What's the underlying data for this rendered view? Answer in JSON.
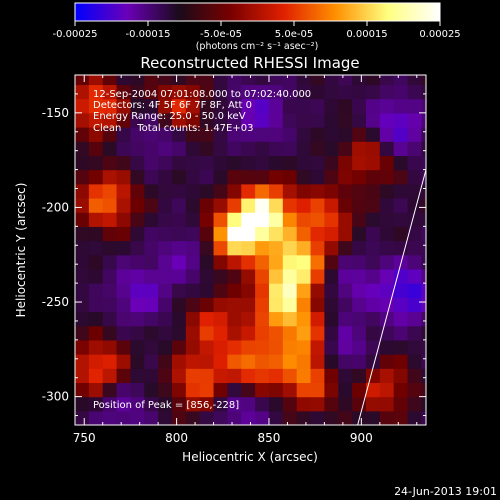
{
  "chart_data": {
    "type": "heatmap",
    "title": "Reconstructed RHESSI Image",
    "xlabel": "Heliocentric X (arcsec)",
    "ylabel": "Heliocentric Y (arcsec)",
    "xlim": [
      745,
      935
    ],
    "ylim": [
      -315,
      -130
    ],
    "x_ticks": [
      750,
      800,
      850,
      900
    ],
    "x_tick_labels": [
      "750",
      "800",
      "850",
      "900"
    ],
    "y_ticks": [
      -150,
      -200,
      -250,
      -300
    ],
    "y_tick_labels": [
      "-150",
      "-200",
      "-250",
      "-300"
    ],
    "colorbar": {
      "range": [
        -0.00025,
        0.00025
      ],
      "ticks": [
        -0.00025,
        -0.00015,
        -5e-05,
        5e-05,
        0.00015,
        0.00025
      ],
      "tick_labels": [
        "-0.00025",
        "-0.00015",
        "-5.0e-05",
        "5.0e-05",
        "0.00015",
        "0.00025"
      ],
      "unit_label": "(photons cm⁻² s⁻¹ asec⁻²)",
      "colormap": [
        "#0000ff",
        "#6a00b8",
        "#1a0a1a",
        "#7a0000",
        "#e02000",
        "#ff9000",
        "#ffff80",
        "#ffffff"
      ]
    },
    "annotations": [
      "12-Sep-2004 07:01:08.000 to 07:02:40.000",
      "Detectors: 4F 5F 6F 7F 8F, Att 0",
      "Energy Range: 25.0 - 50.0 keV",
      "Clean     Total counts: 1.47E+03",
      "Position of Peak = [856,-228]"
    ],
    "peak": [
      856,
      -228
    ],
    "limb_line": [
      [
        898,
        -315
      ],
      [
        935,
        -180
      ]
    ],
    "blobs": [
      {
        "x": 848,
        "y": -203,
        "v": 1.0
      },
      {
        "x": 832,
        "y": -215,
        "v": 0.9
      },
      {
        "x": 865,
        "y": -230,
        "v": 0.9
      },
      {
        "x": 856,
        "y": -250,
        "v": 0.75
      },
      {
        "x": 870,
        "y": -268,
        "v": 0.6
      },
      {
        "x": 842,
        "y": -283,
        "v": 0.65
      },
      {
        "x": 872,
        "y": -290,
        "v": 0.6
      },
      {
        "x": 812,
        "y": -292,
        "v": 0.55
      },
      {
        "x": 758,
        "y": -285,
        "v": 0.55
      },
      {
        "x": 762,
        "y": -196,
        "v": 0.6
      },
      {
        "x": 757,
        "y": -146,
        "v": 0.55
      },
      {
        "x": 800,
        "y": -148,
        "v": 0.5
      },
      {
        "x": 905,
        "y": -172,
        "v": 0.45
      },
      {
        "x": 912,
        "y": -295,
        "v": 0.4
      },
      {
        "x": 880,
        "y": -205,
        "v": 0.5
      },
      {
        "x": 820,
        "y": -262,
        "v": 0.45
      },
      {
        "x": 790,
        "y": -160,
        "v": -0.35
      },
      {
        "x": 845,
        "y": -150,
        "v": -0.4
      },
      {
        "x": 918,
        "y": -158,
        "v": -0.55
      },
      {
        "x": 925,
        "y": -245,
        "v": -0.6
      },
      {
        "x": 780,
        "y": -245,
        "v": -0.4
      },
      {
        "x": 805,
        "y": -225,
        "v": -0.3
      },
      {
        "x": 888,
        "y": -275,
        "v": -0.45
      },
      {
        "x": 770,
        "y": -305,
        "v": -0.3
      },
      {
        "x": 835,
        "y": -305,
        "v": -0.35
      },
      {
        "x": 895,
        "y": -240,
        "v": -0.3
      }
    ]
  },
  "footer": {
    "timestamp": "24-Jun-2013 19:01"
  }
}
